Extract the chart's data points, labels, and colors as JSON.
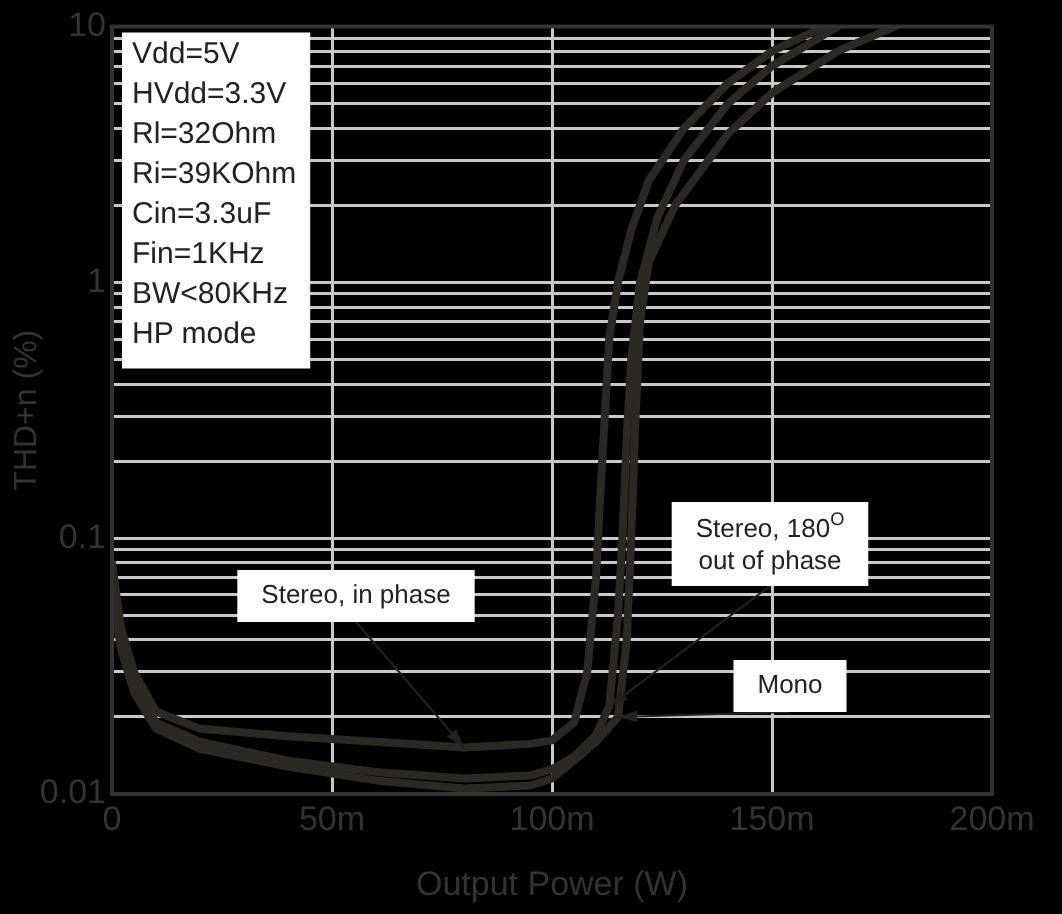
{
  "chart_data": {
    "type": "line",
    "xlabel": "Output Power (W)",
    "ylabel": "THD+n (%)",
    "log": "y",
    "grid": true,
    "legend": false,
    "marker": "none",
    "line_style": "solid",
    "xlim": [
      0,
      200
    ],
    "xticks": [
      0,
      {
        "value": 50,
        "label": "50m"
      },
      {
        "value": 100,
        "label": "100m"
      },
      {
        "value": 150,
        "label": "150m"
      },
      {
        "value": 200,
        "label": "200m"
      }
    ],
    "ylim": [
      0.01,
      10
    ],
    "yticks": [
      0.01,
      {
        "value": 0.02,
        "label": null
      },
      {
        "value": 0.03,
        "label": null
      },
      {
        "value": 0.04,
        "label": null
      },
      {
        "value": 0.05,
        "label": null
      },
      {
        "value": 0.06,
        "label": null
      },
      {
        "value": 0.07,
        "label": null
      },
      {
        "value": 0.08,
        "label": null
      },
      {
        "value": 0.09,
        "label": null
      },
      0.1,
      {
        "value": 0.2,
        "label": null
      },
      {
        "value": 0.3,
        "label": null
      },
      {
        "value": 0.4,
        "label": null
      },
      {
        "value": 0.5,
        "label": null
      },
      {
        "value": 0.6,
        "label": null
      },
      {
        "value": 0.7,
        "label": null
      },
      {
        "value": 0.8,
        "label": null
      },
      {
        "value": 0.9,
        "label": null
      },
      1,
      {
        "value": 2,
        "label": null
      },
      {
        "value": 3,
        "label": null
      },
      {
        "value": 4,
        "label": null
      },
      {
        "value": 5,
        "label": null
      },
      {
        "value": 6,
        "label": null
      },
      {
        "value": 7,
        "label": null
      },
      {
        "value": 8,
        "label": null
      },
      {
        "value": 9,
        "label": null
      },
      10
    ],
    "series": [
      {
        "color": "#2b2926",
        "x": [
          0,
          2,
          5,
          10,
          20,
          40,
          60,
          80,
          95,
          100,
          105,
          108,
          110,
          111,
          112,
          113,
          115,
          118,
          122,
          130,
          140,
          150,
          162
        ],
        "values": [
          0.08,
          0.045,
          0.03,
          0.021,
          0.018,
          0.0168,
          0.016,
          0.0152,
          0.0157,
          0.0162,
          0.019,
          0.03,
          0.07,
          0.15,
          0.3,
          0.6,
          1.0,
          1.6,
          2.5,
          4,
          6,
          8,
          10
        ]
      },
      {
        "color": "#2b2926",
        "x": [
          0,
          2,
          5,
          10,
          20,
          40,
          60,
          80,
          95,
          100,
          105,
          110,
          113,
          115,
          116,
          117,
          118,
          120,
          124,
          130,
          140,
          150,
          165
        ],
        "values": [
          0.07,
          0.04,
          0.027,
          0.019,
          0.016,
          0.0135,
          0.0122,
          0.0115,
          0.0118,
          0.0125,
          0.014,
          0.017,
          0.022,
          0.05,
          0.1,
          0.25,
          0.5,
          1.0,
          1.8,
          3,
          5,
          7,
          10
        ]
      },
      {
        "color": "#2b2926",
        "x": [
          0,
          2,
          5,
          10,
          20,
          40,
          60,
          80,
          95,
          100,
          105,
          110,
          115,
          117,
          118,
          119,
          120,
          122,
          128,
          140,
          150,
          165,
          178
        ],
        "values": [
          0.065,
          0.037,
          0.025,
          0.018,
          0.015,
          0.0128,
          0.0113,
          0.0105,
          0.0108,
          0.0115,
          0.0135,
          0.016,
          0.02,
          0.04,
          0.1,
          0.3,
          0.7,
          1.2,
          2,
          3.8,
          5.5,
          8,
          10
        ]
      }
    ],
    "annotations": [
      "Vdd=5V",
      "HVdd=3.3V",
      "Rl=32Ohm",
      "Ri=39KOhm",
      "Cin=3.3uF",
      "Fin=1KHz",
      "BW<80KHz",
      "HP mode",
      {
        "text": "Stereo, in phase",
        "x": 80,
        "y": 0.0152
      },
      {
        "text": "Stereo, 180$^{O}$ out of phase",
        "x": 113,
        "y": 0.022
      },
      {
        "text": "Mono",
        "x": 115,
        "y": 0.02
      }
    ]
  }
}
